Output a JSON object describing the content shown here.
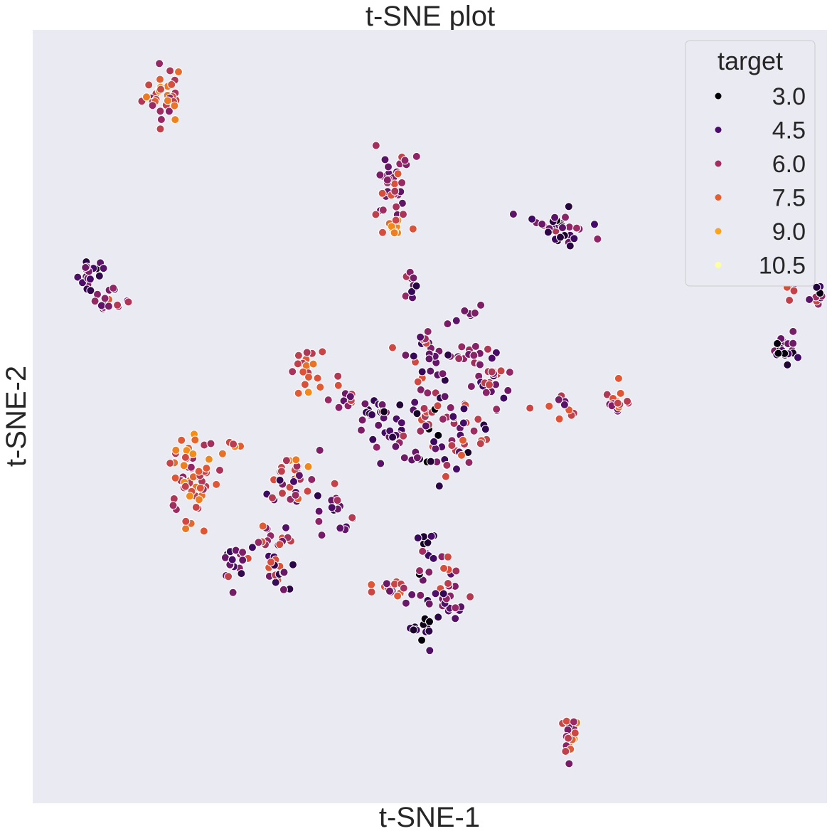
{
  "chart_data": {
    "type": "scatter",
    "title": "t-SNE plot",
    "xlabel": "t-SNE-1",
    "ylabel": "t-SNE-2",
    "grid": false,
    "ticks_visible": false,
    "legend": {
      "title": "target",
      "placement": "top-right",
      "entries": [
        {
          "label": "3.0",
          "value": 3.0,
          "color": "#000004"
        },
        {
          "label": "4.5",
          "value": 4.5,
          "color": "#4a0c6b"
        },
        {
          "label": "6.0",
          "value": 6.0,
          "color": "#a52c60"
        },
        {
          "label": "7.5",
          "value": 7.5,
          "color": "#e75e2d"
        },
        {
          "label": "9.0",
          "value": 9.0,
          "color": "#f9a41c"
        },
        {
          "label": "10.5",
          "value": 10.5,
          "color": "#fcffa4"
        }
      ]
    },
    "colors": {
      "background": "#eaeaf2",
      "hue_scale": [
        "#000004",
        "#420a68",
        "#932667",
        "#dd513a",
        "#fca50a",
        "#fcffa4"
      ],
      "hue_range": [
        3,
        11
      ]
    },
    "xlim": [
      -42,
      42
    ],
    "ylim": [
      -42,
      42
    ],
    "clusters": [
      {
        "cx": -28.2,
        "cy": 35.1,
        "sx": 1.1,
        "sy": 1.6,
        "n": 34,
        "tmin": 6,
        "tmax": 9
      },
      {
        "cx": -36.2,
        "cy": 15.5,
        "sx": 0.9,
        "sy": 0.8,
        "n": 18,
        "tmin": 3,
        "tmax": 6
      },
      {
        "cx": -34.0,
        "cy": 12.4,
        "sx": 0.8,
        "sy": 0.8,
        "n": 18,
        "tmin": 5,
        "tmax": 8
      },
      {
        "cx": -4.0,
        "cy": 24.6,
        "sx": 1.1,
        "sy": 1.9,
        "n": 36,
        "tmin": 5,
        "tmax": 8
      },
      {
        "cx": -3.6,
        "cy": 20.7,
        "sx": 0.4,
        "sy": 0.8,
        "n": 10,
        "tmin": 7,
        "tmax": 9
      },
      {
        "cx": 13.7,
        "cy": 20.6,
        "sx": 1.4,
        "sy": 1.2,
        "n": 32,
        "tmin": 3,
        "tmax": 7
      },
      {
        "cx": 37.7,
        "cy": 15.0,
        "sx": 0.4,
        "sy": 1.4,
        "n": 12,
        "tmin": 5,
        "tmax": 8
      },
      {
        "cx": 41.3,
        "cy": 13.0,
        "sx": 0.5,
        "sy": 0.5,
        "n": 16,
        "tmin": 3,
        "tmax": 8
      },
      {
        "cx": 37.7,
        "cy": 7.3,
        "sx": 0.7,
        "sy": 0.7,
        "n": 20,
        "tmin": 3,
        "tmax": 6
      },
      {
        "cx": -2.0,
        "cy": 14.0,
        "sx": 0.5,
        "sy": 1.1,
        "n": 10,
        "tmin": 4,
        "tmax": 7
      },
      {
        "cx": 4.5,
        "cy": 11.5,
        "sx": 0.5,
        "sy": 0.7,
        "n": 6,
        "tmin": 5,
        "tmax": 7
      },
      {
        "cx": -1.2,
        "cy": 6.5,
        "sx": 1.4,
        "sy": 2.2,
        "n": 26,
        "tmin": 4,
        "tmax": 8
      },
      {
        "cx": 2.5,
        "cy": 6.3,
        "sx": 1.2,
        "sy": 1.4,
        "n": 16,
        "tmin": 4,
        "tmax": 7
      },
      {
        "cx": 6.5,
        "cy": 3.5,
        "sx": 1.0,
        "sy": 2.0,
        "n": 28,
        "tmin": 4,
        "tmax": 8
      },
      {
        "cx": -13.0,
        "cy": 5.0,
        "sx": 1.0,
        "sy": 1.6,
        "n": 20,
        "tmin": 6,
        "tmax": 9
      },
      {
        "cx": -9.5,
        "cy": 1.7,
        "sx": 0.8,
        "sy": 0.8,
        "n": 10,
        "tmin": 5,
        "tmax": 8
      },
      {
        "cx": -6.2,
        "cy": 0.8,
        "sx": 1.0,
        "sy": 0.8,
        "n": 14,
        "tmin": 4,
        "tmax": 6
      },
      {
        "cx": -4.4,
        "cy": -1.8,
        "sx": 1.4,
        "sy": 1.1,
        "n": 20,
        "tmin": 4,
        "tmax": 7
      },
      {
        "cx": 0.0,
        "cy": -2.0,
        "sx": 1.7,
        "sy": 2.5,
        "n": 40,
        "tmin": 3,
        "tmax": 8
      },
      {
        "cx": 3.5,
        "cy": -1.5,
        "sx": 1.5,
        "sy": 2.0,
        "n": 30,
        "tmin": 4,
        "tmax": 8
      },
      {
        "cx": 14.2,
        "cy": 1.6,
        "sx": 0.9,
        "sy": 0.8,
        "n": 12,
        "tmin": 5,
        "tmax": 8
      },
      {
        "cx": 19.7,
        "cy": 1.3,
        "sx": 1.0,
        "sy": 0.9,
        "n": 16,
        "tmin": 5,
        "tmax": 9
      },
      {
        "cx": -20.7,
        "cy": -2.7,
        "sx": 0.4,
        "sy": 0.5,
        "n": 4,
        "tmin": 7,
        "tmax": 9
      },
      {
        "cx": -25.5,
        "cy": -7.0,
        "sx": 1.4,
        "sy": 2.6,
        "n": 60,
        "tmin": 6,
        "tmax": 9
      },
      {
        "cx": -14.5,
        "cy": -6.8,
        "sx": 1.6,
        "sy": 1.7,
        "n": 34,
        "tmin": 4,
        "tmax": 9
      },
      {
        "cx": -17.0,
        "cy": -13.2,
        "sx": 1.1,
        "sy": 1.1,
        "n": 20,
        "tmin": 4,
        "tmax": 8
      },
      {
        "cx": -10.3,
        "cy": -9.5,
        "sx": 1.0,
        "sy": 1.0,
        "n": 16,
        "tmin": 4,
        "tmax": 7
      },
      {
        "cx": -20.5,
        "cy": -16.0,
        "sx": 1.0,
        "sy": 1.1,
        "n": 22,
        "tmin": 4,
        "tmax": 8
      },
      {
        "cx": -16.0,
        "cy": -17.2,
        "sx": 1.0,
        "sy": 0.8,
        "n": 14,
        "tmin": 4,
        "tmax": 8
      },
      {
        "cx": -4.0,
        "cy": -18.8,
        "sx": 1.2,
        "sy": 0.8,
        "n": 16,
        "tmin": 5,
        "tmax": 8
      },
      {
        "cx": -0.5,
        "cy": -14.5,
        "sx": 0.5,
        "sy": 1.8,
        "n": 14,
        "tmin": 3,
        "tmax": 7
      },
      {
        "cx": 2.0,
        "cy": -17.0,
        "sx": 0.6,
        "sy": 1.1,
        "n": 10,
        "tmin": 3,
        "tmax": 8
      },
      {
        "cx": 1.7,
        "cy": -20.5,
        "sx": 1.2,
        "sy": 0.9,
        "n": 18,
        "tmin": 4,
        "tmax": 7
      },
      {
        "cx": -0.7,
        "cy": -23.2,
        "sx": 0.8,
        "sy": 1.1,
        "n": 14,
        "tmin": 3,
        "tmax": 5
      },
      {
        "cx": 14.8,
        "cy": -34.8,
        "sx": 0.5,
        "sy": 0.9,
        "n": 20,
        "tmin": 5,
        "tmax": 9
      }
    ]
  }
}
